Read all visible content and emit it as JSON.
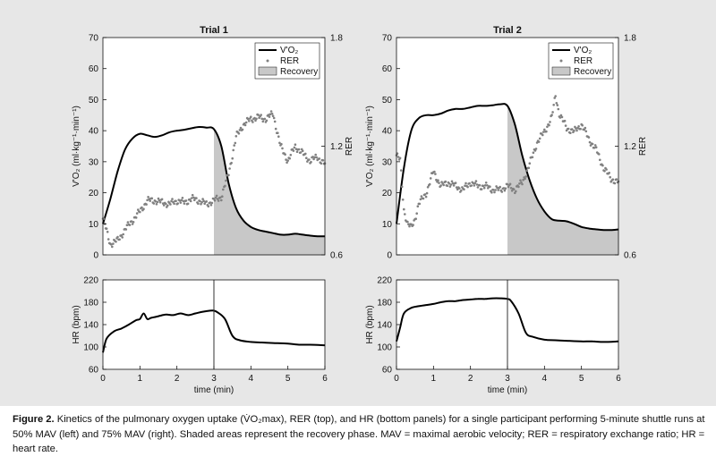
{
  "figure": {
    "panel_color": "#e7e7e7"
  },
  "caption": {
    "label": "Figure 2.",
    "text": " Kinetics of the pulmonary oxygen uptake (V̇O₂max), RER (top), and HR (bottom panels) for a single participant performing 5-minute shuttle runs at 50% MAV (left) and 75% MAV (right). Shaded areas represent the recovery phase. MAV = maximal aerobic velocity; RER = respiratory exchange ratio; HR = heart rate."
  },
  "chart_data": [
    {
      "type": "line",
      "title": "Trial 1",
      "xlabel": "",
      "ylabel": "V'O₂ (ml·kg⁻¹·min⁻¹)",
      "ylabel_right": "RER",
      "xlim": [
        0,
        6
      ],
      "ylim": [
        0,
        70
      ],
      "ylim_right": [
        0.6,
        1.8
      ],
      "yticks": [
        0,
        10,
        20,
        30,
        40,
        50,
        60,
        70
      ],
      "yticks_right": [
        0.6,
        1.2,
        1.8
      ],
      "legend": [
        "V'O₂",
        "RER",
        "Recovery"
      ],
      "legend_position": "top-right",
      "recovery_start": 3,
      "series": [
        {
          "name": "V'O₂",
          "color": "#000000",
          "x": [
            0,
            0.2,
            0.4,
            0.6,
            0.8,
            1.0,
            1.2,
            1.4,
            1.6,
            1.8,
            2.0,
            2.2,
            2.4,
            2.6,
            2.8,
            3.0,
            3.2,
            3.4,
            3.6,
            3.8,
            4.0,
            4.2,
            4.4,
            4.6,
            4.8,
            5.0,
            5.2,
            5.4,
            5.6,
            5.8,
            6.0
          ],
          "values": [
            10,
            18,
            27,
            34,
            37.5,
            39,
            38.5,
            38,
            38.5,
            39.5,
            40,
            40.3,
            40.8,
            41.2,
            41,
            40.5,
            35,
            23,
            15,
            11,
            9,
            8,
            7.5,
            7,
            6.5,
            6.5,
            6.8,
            6.5,
            6.2,
            6.0,
            6.0
          ]
        },
        {
          "name": "RER",
          "color": "#808080",
          "axis": "right",
          "x": [
            0,
            0.2,
            0.4,
            0.6,
            0.8,
            1.0,
            1.2,
            1.4,
            1.6,
            1.8,
            2.0,
            2.2,
            2.4,
            2.6,
            2.8,
            3.0,
            3.2,
            3.4,
            3.6,
            3.8,
            4.0,
            4.2,
            4.4,
            4.6,
            4.8,
            5.0,
            5.2,
            5.4,
            5.6,
            5.8,
            6.0
          ],
          "values": [
            0.8,
            0.66,
            0.68,
            0.74,
            0.79,
            0.84,
            0.9,
            0.9,
            0.89,
            0.88,
            0.9,
            0.89,
            0.91,
            0.9,
            0.88,
            0.9,
            0.92,
            1.05,
            1.25,
            1.32,
            1.35,
            1.36,
            1.35,
            1.38,
            1.2,
            1.12,
            1.2,
            1.16,
            1.12,
            1.14,
            1.1
          ]
        }
      ]
    },
    {
      "type": "line",
      "title": "",
      "xlabel": "time (min)",
      "ylabel": "HR (bpm)",
      "xlim": [
        0,
        6
      ],
      "ylim": [
        60,
        220
      ],
      "xticks": [
        0,
        1,
        2,
        3,
        4,
        5,
        6
      ],
      "yticks": [
        60,
        100,
        140,
        180,
        220
      ],
      "recovery_start": 3,
      "series": [
        {
          "color": "#000000",
          "x": [
            0,
            0.1,
            0.3,
            0.5,
            0.7,
            0.9,
            1.0,
            1.1,
            1.2,
            1.3,
            1.5,
            1.7,
            1.9,
            2.1,
            2.3,
            2.5,
            2.7,
            2.9,
            3.0,
            3.1,
            3.3,
            3.5,
            3.7,
            4.0,
            4.3,
            4.6,
            5.0,
            5.3,
            5.6,
            6.0
          ],
          "values": [
            90,
            115,
            128,
            133,
            140,
            148,
            150,
            160,
            150,
            152,
            155,
            158,
            157,
            160,
            157,
            160,
            163,
            165,
            165,
            162,
            150,
            120,
            112,
            109,
            108,
            107,
            106,
            104,
            104,
            103
          ]
        }
      ]
    },
    {
      "type": "line",
      "title": "Trial 2",
      "xlabel": "",
      "ylabel": "V'O₂ (ml·kg⁻¹·min⁻¹)",
      "ylabel_right": "RER",
      "xlim": [
        0,
        6
      ],
      "ylim": [
        0,
        70
      ],
      "ylim_right": [
        0.6,
        1.8
      ],
      "yticks": [
        0,
        10,
        20,
        30,
        40,
        50,
        60,
        70
      ],
      "yticks_right": [
        0.6,
        1.2,
        1.8
      ],
      "legend": [
        "V'O₂",
        "RER",
        "Recovery"
      ],
      "legend_position": "top-right",
      "recovery_start": 3,
      "series": [
        {
          "name": "V'O₂",
          "color": "#000000",
          "x": [
            0,
            0.2,
            0.4,
            0.6,
            0.8,
            1.0,
            1.2,
            1.4,
            1.6,
            1.8,
            2.0,
            2.2,
            2.4,
            2.6,
            2.8,
            3.0,
            3.2,
            3.4,
            3.6,
            3.8,
            4.0,
            4.2,
            4.4,
            4.6,
            4.8,
            5.0,
            5.2,
            5.4,
            5.6,
            5.8,
            6.0
          ],
          "values": [
            10,
            28,
            40,
            44,
            45,
            45,
            45.5,
            46.5,
            47,
            47,
            47.5,
            48,
            48,
            48.2,
            48.5,
            48,
            42,
            32,
            24,
            18,
            14,
            11.5,
            11,
            10.8,
            10,
            9,
            8.5,
            8.2,
            8.0,
            8.0,
            8.2
          ]
        },
        {
          "name": "RER",
          "color": "#808080",
          "axis": "right",
          "x": [
            0,
            0.1,
            0.2,
            0.3,
            0.4,
            0.5,
            0.6,
            0.8,
            1.0,
            1.2,
            1.4,
            1.6,
            1.8,
            2.0,
            2.2,
            2.4,
            2.6,
            2.8,
            3.0,
            3.2,
            3.4,
            3.6,
            3.8,
            4.0,
            4.2,
            4.3,
            4.4,
            4.6,
            4.8,
            5.0,
            5.2,
            5.4,
            5.6,
            5.8,
            6.0
          ],
          "values": [
            1.15,
            1.12,
            0.85,
            0.77,
            0.75,
            0.8,
            0.88,
            0.94,
            1.06,
            0.98,
            1.0,
            0.98,
            0.96,
            1.0,
            0.98,
            0.98,
            0.96,
            0.96,
            0.98,
            0.96,
            1.0,
            1.1,
            1.22,
            1.28,
            1.36,
            1.48,
            1.38,
            1.3,
            1.28,
            1.32,
            1.24,
            1.18,
            1.08,
            1.02,
            1.0
          ]
        }
      ]
    },
    {
      "type": "line",
      "title": "",
      "xlabel": "time (min)",
      "ylabel": "HR (bpm)",
      "xlim": [
        0,
        6
      ],
      "ylim": [
        60,
        220
      ],
      "xticks": [
        0,
        1,
        2,
        3,
        4,
        5,
        6
      ],
      "yticks": [
        60,
        100,
        140,
        180,
        220
      ],
      "recovery_start": 3,
      "series": [
        {
          "color": "#000000",
          "x": [
            0,
            0.1,
            0.2,
            0.4,
            0.6,
            0.8,
            1.0,
            1.2,
            1.4,
            1.6,
            1.8,
            2.0,
            2.2,
            2.4,
            2.6,
            2.8,
            3.0,
            3.1,
            3.3,
            3.5,
            3.7,
            4.0,
            4.3,
            4.6,
            5.0,
            5.3,
            5.6,
            6.0
          ],
          "values": [
            110,
            135,
            160,
            170,
            173,
            175,
            177,
            180,
            182,
            182,
            184,
            185,
            186,
            186,
            187,
            187,
            186,
            182,
            160,
            125,
            118,
            113,
            112,
            111,
            110,
            110,
            109,
            110
          ]
        }
      ]
    }
  ]
}
